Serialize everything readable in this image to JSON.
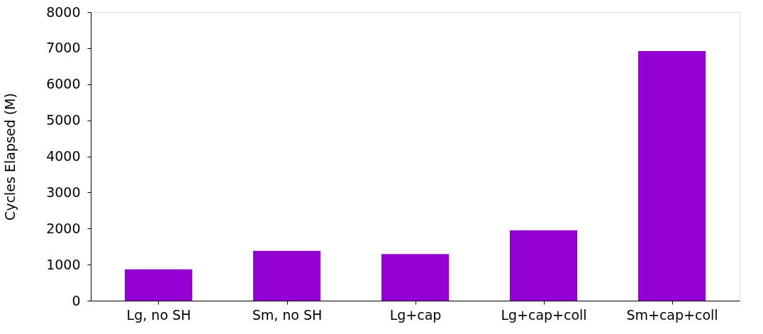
{
  "chart_data": {
    "type": "bar",
    "ylabel": "Cycles Elapsed (M)",
    "categories": [
      "Lg, no SH",
      "Sm, no SH",
      "Lg+cap",
      "Lg+cap+coll",
      "Sm+cap+coll"
    ],
    "values": [
      870,
      1380,
      1290,
      1950,
      6920
    ],
    "color": "#9400d3",
    "ylim": [
      0,
      8000
    ],
    "yticks": [
      0,
      1000,
      2000,
      3000,
      4000,
      5000,
      6000,
      7000,
      8000
    ],
    "grid": false
  }
}
